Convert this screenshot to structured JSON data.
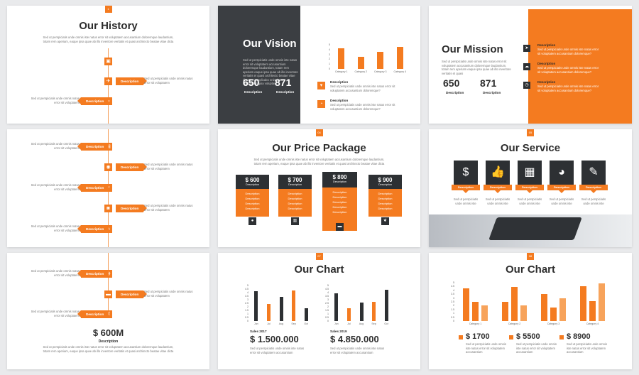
{
  "lorem": {
    "long": "Sed ut perspiciatis unde omnis iste natus error sit voluptatem accusantium doloremque laudantium, totam rem aperiam, eaque ipsa quae ab illo inventore veritatis et quasi architecto beatae vitae dicta",
    "medium": "Sed ut perspiciatis unde omnis iste natus error sit voluptatem accusantium doloremque?",
    "short": "Sed ut perspiciatis unde omnis natus error sit voluptatem",
    "service": "Sed ut perspiciatis unde omnis iste",
    "chart": "Sed ut perspiciatis unde omnis iste natus error sit voluptatem accusantium"
  },
  "history": {
    "title": "Our History",
    "tag": "1",
    "desc_label": "Description",
    "value": "$ 600M",
    "value_desc": "Description"
  },
  "vision": {
    "title": "Our Vision",
    "text": "Sed ut perspiciatis unde omnis iste natus error sit voluptatem accusantium doloremque laudantium, totam rem aperiam eaque ipsa quae ab illo inventore veritatis et quasi architecto beatae vitae dicta sunt explicabo enim ipsam voluptatem quia voluptas",
    "stat1": "650",
    "stat2": "871",
    "stat_label": "Description",
    "desc_label": "Description",
    "chart_ticks": [
      "5",
      "4",
      "3",
      "2",
      "1",
      "0"
    ],
    "chart_categories": [
      "Category 1",
      "Category 2",
      "Category 3",
      "Category 4"
    ]
  },
  "mission": {
    "title": "Our Mission",
    "text": "Sed ut perspiciatis unde omnis iste natus error sit voluptatem accusantium doloremque laudantium, totam rem aperiam eaque ipsa quae ab illo inventore veritatis et quasi",
    "stat1": "650",
    "stat2": "871",
    "stat_label": "Description",
    "desc_label": "Description"
  },
  "price": {
    "title": "Our Price Package",
    "tag": "04",
    "text": "Sed ut perspiciatis unde omnis iste natus error sit voluptatem accusantium doloremque laudantium, totam rem aperiam, eaque ipsa quae ab illo inventore veritatis et quasi architecto beatae vitae dicta",
    "desc": "Description",
    "packages": [
      {
        "price": "$ 600",
        "label": "Description"
      },
      {
        "price": "$ 700",
        "label": "Description"
      },
      {
        "price": "$ 800",
        "label": "Description"
      },
      {
        "price": "$ 900",
        "label": "Description"
      }
    ]
  },
  "service": {
    "title": "Our Service",
    "tag": "05",
    "desc_label": "Description",
    "icons": [
      "money-bag-icon",
      "thumbs-up-icon",
      "gift-icon",
      "palette-icon",
      "pencil-icon"
    ]
  },
  "chart1": {
    "title": "Our Chart",
    "tag": "07",
    "months": [
      "Jun",
      "Jul",
      "Aug",
      "Sep",
      "Oct"
    ],
    "ticks": [
      "5",
      "4.5",
      "4",
      "3.5",
      "3",
      "2.5",
      "2",
      "1.5",
      "1",
      "0.5",
      "0"
    ],
    "left_label": "Sales 2017",
    "left_value": "$ 1.500.000",
    "right_label": "Sales 2019",
    "right_value": "$ 4.850.000"
  },
  "chart2": {
    "title": "Our Chart",
    "tag": "08",
    "categories": [
      "Category 1",
      "Category 2",
      "Category 3",
      "Category 4"
    ],
    "ticks": [
      "5",
      "4.5",
      "4",
      "3.5",
      "3",
      "2.5",
      "2",
      "1.5",
      "1",
      "0.5",
      "0"
    ],
    "v1": "$ 1700",
    "v2": "$ 5500",
    "v3": "$ 8900"
  },
  "chart_data": [
    {
      "type": "bar",
      "categories": [
        "Category 1",
        "Category 2",
        "Category 3",
        "Category 4"
      ],
      "values": [
        4.3,
        2.5,
        3.5,
        4.5
      ],
      "ylim": [
        0,
        5
      ]
    },
    {
      "type": "bar",
      "categories": [
        "Jun",
        "Jul",
        "Aug",
        "Sep",
        "Oct"
      ],
      "values": [
        4.2,
        2.4,
        3.4,
        4.3,
        1.8
      ],
      "ylim": [
        0,
        5
      ]
    },
    {
      "type": "bar",
      "categories": [
        "Jun",
        "Jul",
        "Aug",
        "Sep",
        "Oct"
      ],
      "values": [
        3.9,
        1.8,
        2.6,
        2.7,
        4.4
      ],
      "ylim": [
        0,
        5
      ]
    },
    {
      "type": "bar",
      "categories": [
        "Category 1",
        "Category 2",
        "Category 3",
        "Category 4"
      ],
      "series": [
        {
          "values": [
            4.3,
            2.5,
            3.5,
            4.5
          ]
        },
        {
          "values": [
            2.5,
            4.4,
            1.8,
            2.6
          ]
        },
        {
          "values": [
            2.0,
            2.0,
            3.0,
            4.9
          ]
        }
      ],
      "ylim": [
        0,
        5
      ]
    }
  ]
}
